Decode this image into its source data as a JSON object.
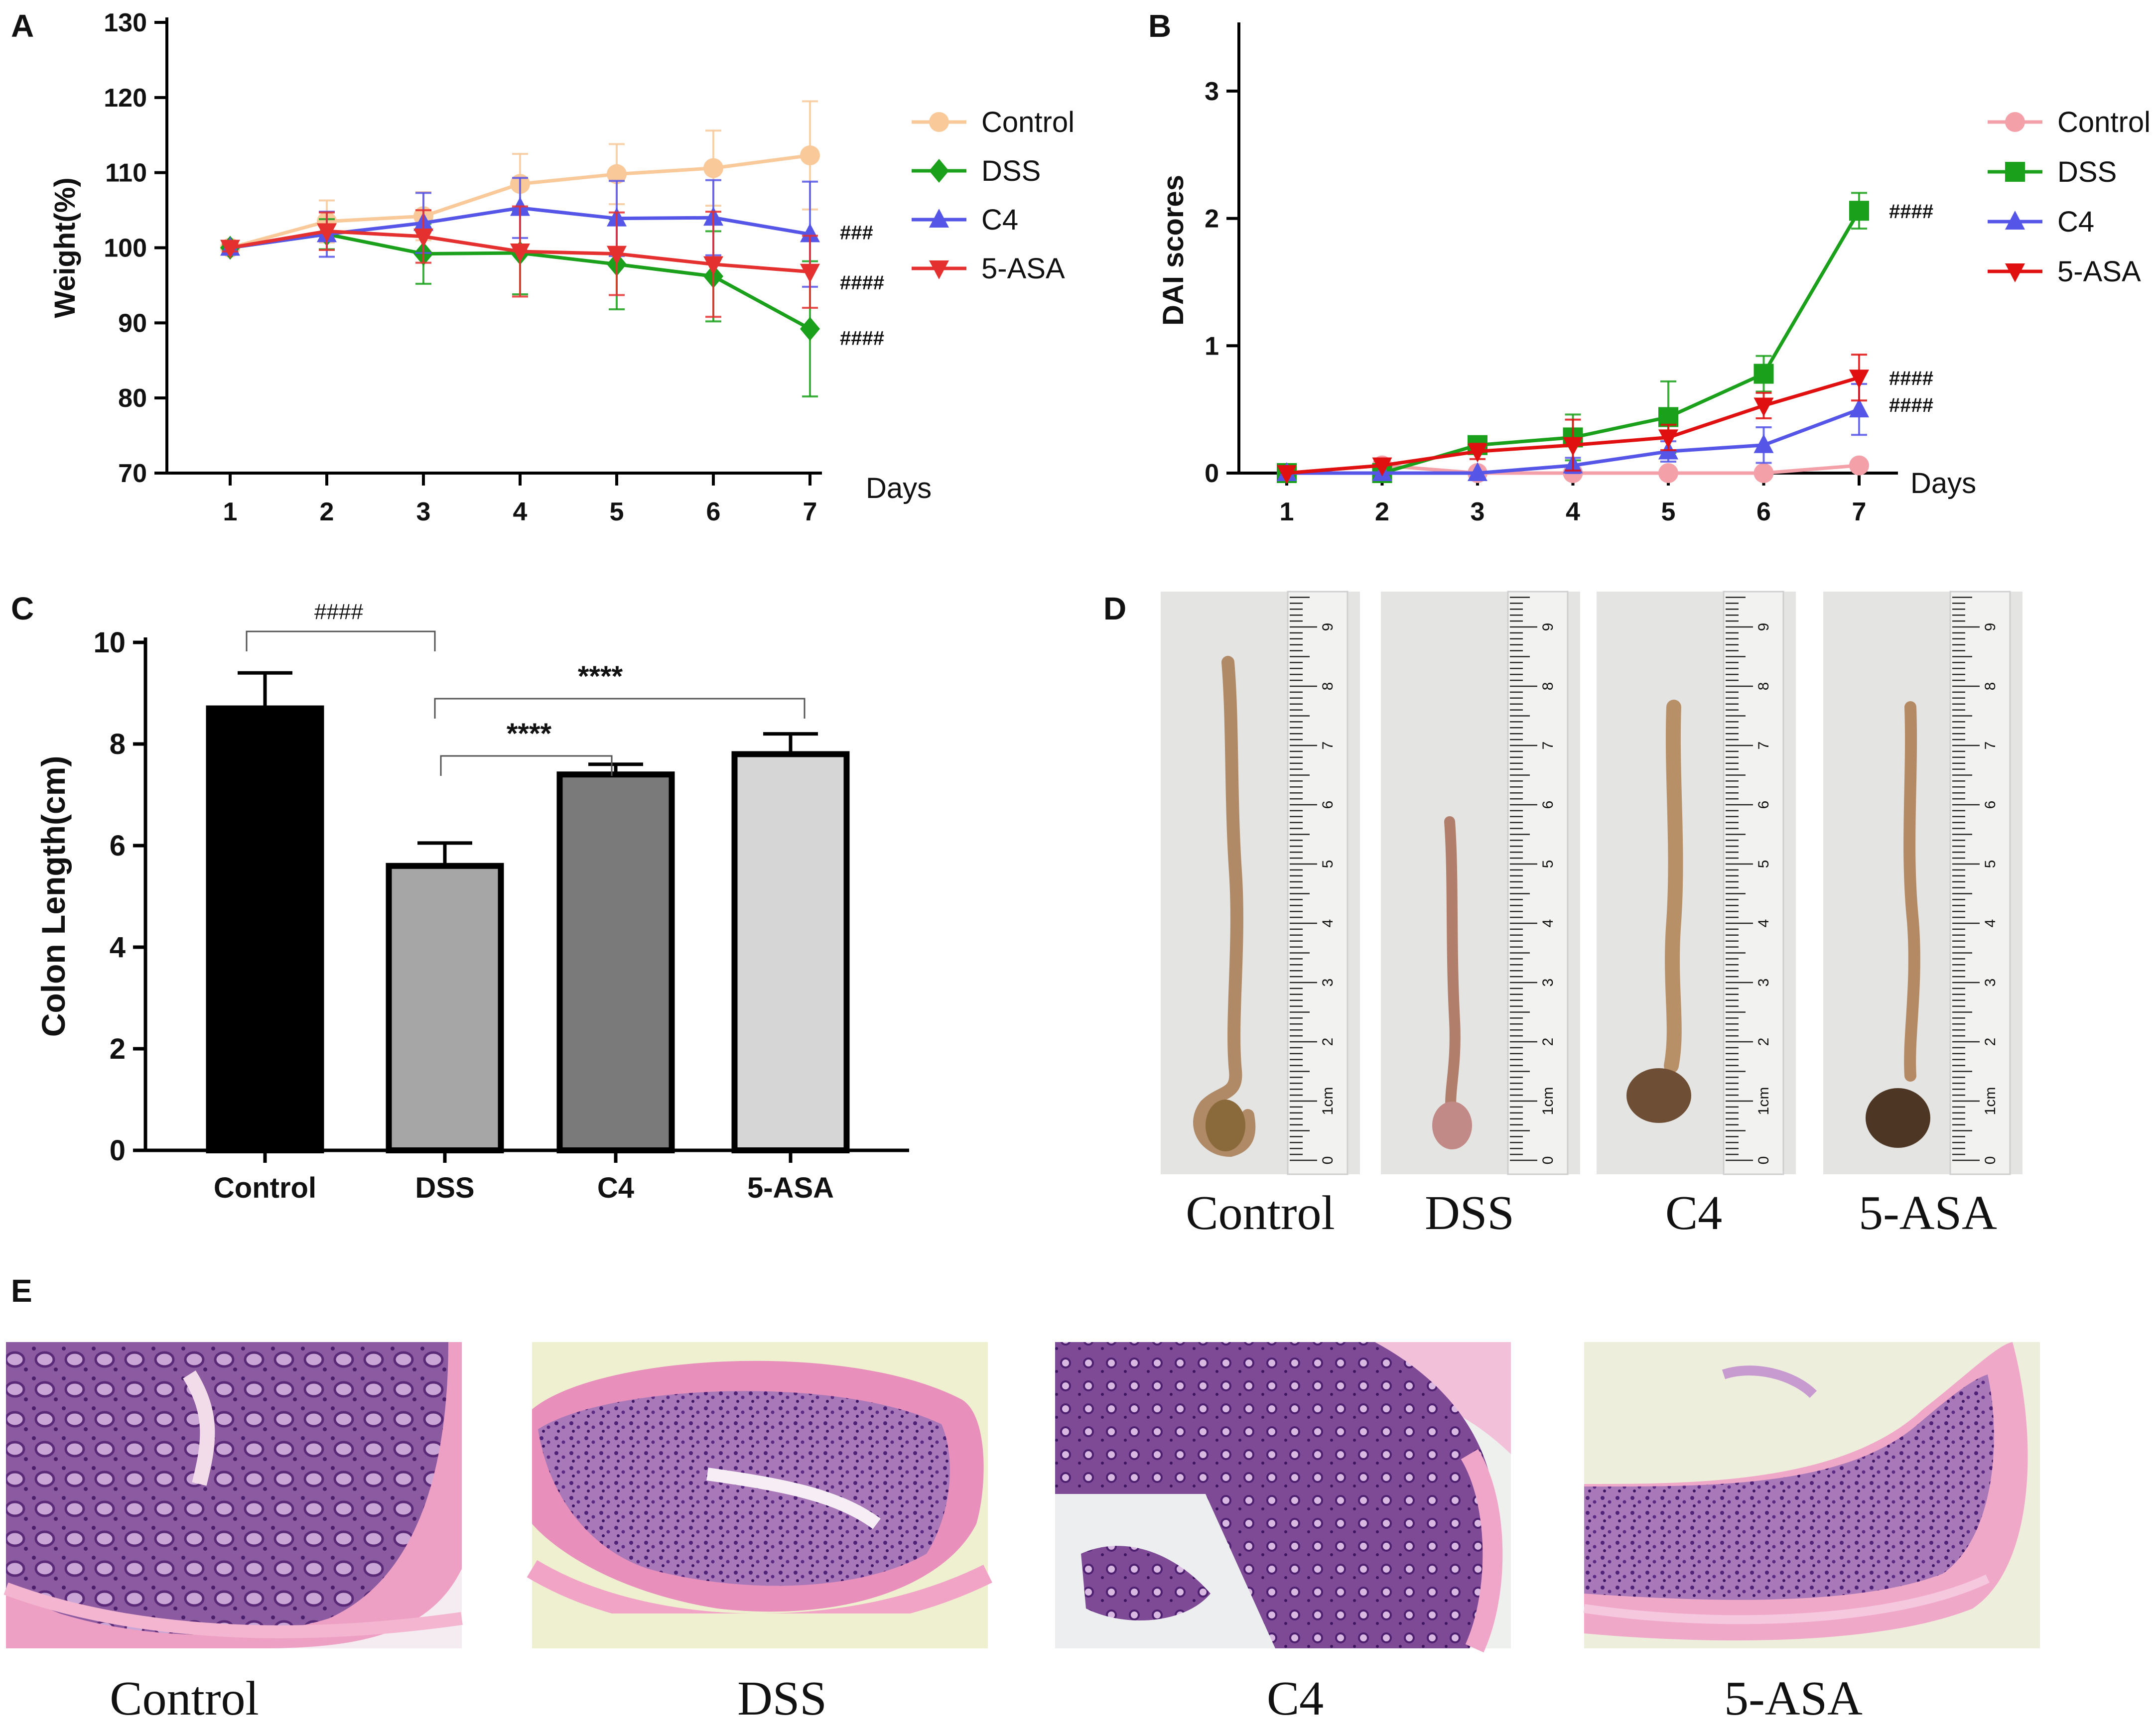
{
  "chart_data": [
    {
      "panel": "A",
      "type": "line",
      "xlabel": "Days",
      "ylabel": "Weight(%)",
      "x": [
        1,
        2,
        3,
        4,
        5,
        6,
        7
      ],
      "xticks": [
        "1",
        "2",
        "3",
        "4",
        "5",
        "6",
        "7"
      ],
      "yticks": [
        "70",
        "80",
        "90",
        "100",
        "110",
        "120",
        "130"
      ],
      "ylim": [
        70,
        130
      ],
      "legend_position": "top-right",
      "series": [
        {
          "name": "Control",
          "color": "#f9c99a",
          "marker": "circle",
          "values": [
            100,
            103.5,
            104.2,
            108.5,
            109.8,
            110.6,
            112.3
          ],
          "errors": [
            0.5,
            2.8,
            3.2,
            4.0,
            4.0,
            5.0,
            7.2
          ]
        },
        {
          "name": "DSS",
          "color": "#1aa01a",
          "marker": "diamond",
          "values": [
            100,
            101.8,
            99.2,
            99.3,
            97.8,
            96.2,
            89.2
          ],
          "errors": [
            0.5,
            2.0,
            4.0,
            5.5,
            6.0,
            6.0,
            9.0
          ]
        },
        {
          "name": "C4",
          "color": "#5555e8",
          "marker": "triangle-up",
          "values": [
            100,
            101.8,
            103.3,
            105.3,
            103.9,
            104.0,
            101.8
          ],
          "errors": [
            0.5,
            3.0,
            4.0,
            4.0,
            5.0,
            5.0,
            7.0
          ]
        },
        {
          "name": "5-ASA",
          "color": "#e53030",
          "marker": "triangle-down",
          "values": [
            100,
            102.2,
            101.5,
            99.5,
            99.2,
            97.8,
            96.8
          ],
          "errors": [
            0.5,
            2.5,
            3.5,
            6.0,
            5.5,
            7.0,
            4.8
          ]
        }
      ],
      "annotations": [
        {
          "text": "###",
          "series": "C4",
          "day": 7
        },
        {
          "text": "####",
          "series": "5-ASA",
          "day": 7
        },
        {
          "text": "####",
          "series": "DSS",
          "day": 7
        }
      ]
    },
    {
      "panel": "B",
      "type": "line",
      "xlabel": "Days",
      "ylabel": "DAI scores",
      "x": [
        1,
        2,
        3,
        4,
        5,
        6,
        7
      ],
      "xticks": [
        "1",
        "2",
        "3",
        "4",
        "5",
        "6",
        "7"
      ],
      "yticks": [
        "0",
        "1",
        "2",
        "3"
      ],
      "ylim": [
        0,
        3.5
      ],
      "legend_position": "top-right",
      "series": [
        {
          "name": "Control",
          "color": "#f4a0a8",
          "marker": "circle",
          "values": [
            0,
            0.06,
            0,
            0,
            0,
            0,
            0.06
          ],
          "errors": [
            0,
            0,
            0,
            0,
            0,
            0,
            0
          ]
        },
        {
          "name": "DSS",
          "color": "#1aa01a",
          "marker": "square",
          "values": [
            0,
            0,
            0.22,
            0.28,
            0.44,
            0.78,
            2.06
          ],
          "errors": [
            0,
            0,
            0.06,
            0.18,
            0.28,
            0.14,
            0.14
          ]
        },
        {
          "name": "C4",
          "color": "#5555e8",
          "marker": "triangle-up",
          "values": [
            0,
            0,
            0,
            0.06,
            0.17,
            0.22,
            0.5
          ],
          "errors": [
            0,
            0,
            0,
            0.06,
            0.08,
            0.14,
            0.2
          ]
        },
        {
          "name": "5-ASA",
          "color": "#e01010",
          "marker": "triangle-down",
          "values": [
            0,
            0.06,
            0.17,
            0.22,
            0.28,
            0.53,
            0.75
          ],
          "errors": [
            0,
            0,
            0.06,
            0.2,
            0.1,
            0.1,
            0.18
          ]
        }
      ],
      "annotations": [
        {
          "text": "####",
          "series": "DSS",
          "day": 7
        },
        {
          "text": "####",
          "series": "5-ASA",
          "day": 7
        },
        {
          "text": "####",
          "series": "C4",
          "day": 7
        }
      ]
    },
    {
      "panel": "C",
      "type": "bar",
      "ylabel": "Colon Length(cm)",
      "categories": [
        "Control",
        "DSS",
        "C4",
        "5-ASA"
      ],
      "values": [
        8.7,
        5.6,
        7.4,
        7.8
      ],
      "errors": [
        0.7,
        0.45,
        0.2,
        0.4
      ],
      "colors": [
        "#000000",
        "#a6a6a6",
        "#7a7a7a",
        "#d6d6d6"
      ],
      "yticks": [
        "0",
        "2",
        "4",
        "6",
        "8",
        "10"
      ],
      "ylim": [
        0,
        10
      ],
      "significance": [
        {
          "text": "####",
          "from": "Control",
          "to": "DSS"
        },
        {
          "text": "****",
          "from": "DSS",
          "to": "C4"
        },
        {
          "text": "****",
          "from": "DSS",
          "to": "5-ASA"
        }
      ]
    }
  ],
  "panels": {
    "a": "A",
    "b": "B",
    "c": "C",
    "d": "D",
    "e": "E"
  },
  "colon_photos": {
    "captions": [
      "Control",
      "DSS",
      "C4",
      "5-ASA"
    ],
    "ruler_numbers": [
      "0",
      "1cm",
      "2",
      "3",
      "4",
      "5",
      "6",
      "7",
      "8",
      "9"
    ]
  },
  "histology": {
    "captions": [
      "Control",
      "DSS",
      "C4",
      "5-ASA"
    ]
  }
}
